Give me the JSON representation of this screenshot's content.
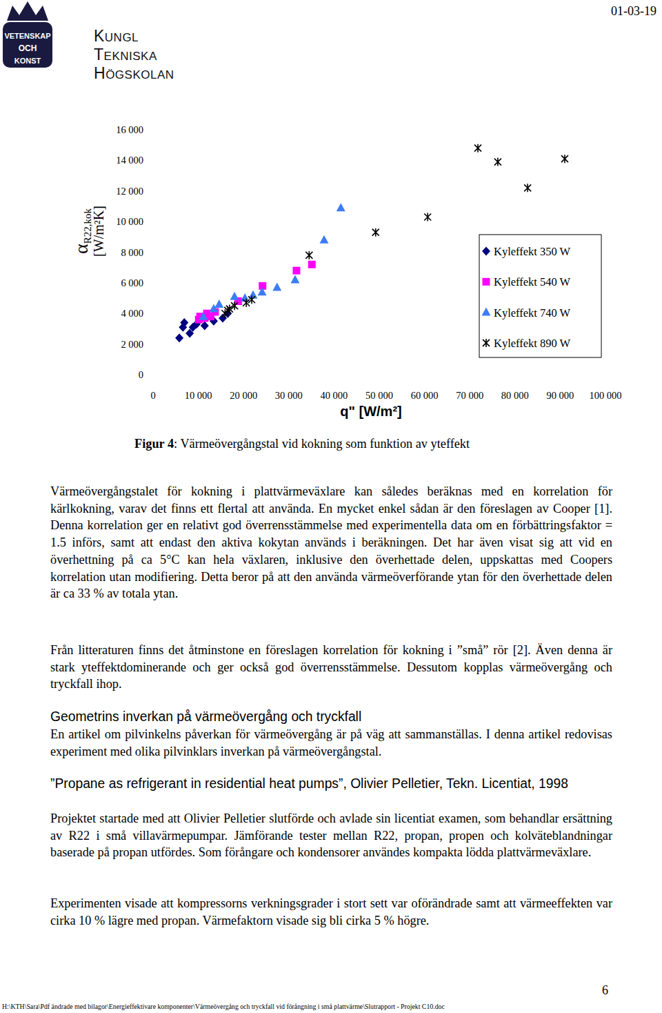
{
  "header": {
    "seal": [
      "VETENSKAP",
      "OCH",
      "KONST"
    ],
    "name": [
      "KUNGL",
      "TEKNISKA",
      "HÖGSKOLAN"
    ],
    "date": "01-03-19"
  },
  "chart_data": {
    "type": "scatter",
    "xlabel": "q\" [W/m²]",
    "ylabel": [
      "α",
      "R22,kok",
      "[W/m²K]"
    ],
    "xlim": [
      0,
      100000
    ],
    "ylim": [
      0,
      16000
    ],
    "xticks": [
      0,
      {
        "value": 10000,
        "label": "10 000"
      },
      {
        "value": 20000,
        "label": "20 000"
      },
      {
        "value": 30000,
        "label": "30 000"
      },
      {
        "value": 40000,
        "label": "40 000"
      },
      {
        "value": 50000,
        "label": "50 000"
      },
      {
        "value": 60000,
        "label": "60 000"
      },
      {
        "value": 70000,
        "label": "70 000"
      },
      {
        "value": 80000,
        "label": "80 000"
      },
      {
        "value": 90000,
        "label": "90 000"
      },
      {
        "value": 100000,
        "label": "100 000"
      }
    ],
    "yticks": [
      0,
      {
        "value": 2000,
        "label": "2 000"
      },
      {
        "value": 4000,
        "label": "4 000"
      },
      {
        "value": 6000,
        "label": "6 000"
      },
      {
        "value": 8000,
        "label": "8 000"
      },
      {
        "value": 10000,
        "label": "10 000"
      },
      {
        "value": 12000,
        "label": "12 000"
      },
      {
        "value": 14000,
        "label": "14 000"
      },
      {
        "value": 16000,
        "label": "16 000"
      }
    ],
    "legend": "right",
    "grid": false,
    "series": [
      {
        "name": "Kyleffekt 350 W",
        "color": "#000080",
        "marker": "diamond",
        "x": [
          5800,
          6600,
          6900,
          8100,
          8800,
          9600,
          11400,
          13400,
          15400,
          16500
        ],
        "values": [
          2400,
          3100,
          3400,
          2700,
          3100,
          3300,
          3200,
          3500,
          3700,
          4000
        ]
      },
      {
        "name": "Kyleffekt 540 W",
        "color": "#ff00ff",
        "marker": "square",
        "x": [
          10100,
          10400,
          11400,
          11900,
          12700,
          13700,
          18800,
          24200,
          31700,
          35100
        ],
        "values": [
          3600,
          3800,
          3700,
          4000,
          3800,
          4100,
          4800,
          5800,
          6800,
          7200
        ]
      },
      {
        "name": "Kyleffekt 740 W",
        "color": "#3d7cf5",
        "marker": "triangle",
        "x": [
          11100,
          13400,
          14600,
          18000,
          20300,
          22100,
          24100,
          27400,
          31400,
          37800,
          41500
        ],
        "values": [
          3800,
          4300,
          4600,
          5100,
          5000,
          5200,
          5400,
          5700,
          6200,
          8800,
          10900
        ]
      },
      {
        "name": "Kyleffekt 890 W",
        "color": "#000000",
        "marker": "asterisk",
        "x": [
          15900,
          16500,
          16900,
          18000,
          20600,
          21800,
          34500,
          49200,
          60700,
          71800,
          76200,
          82800,
          91000
        ],
        "values": [
          4000,
          4200,
          4300,
          4500,
          4700,
          4900,
          7800,
          9300,
          10300,
          14800,
          13900,
          12200,
          14100
        ]
      }
    ]
  },
  "caption": {
    "label": "Figur 4",
    "text": ": Värmeövergångstal vid kokning som funktion av yteffekt"
  },
  "body": [
    {
      "type": "paragraph",
      "text": "Värmeövergångstalet för kokning i plattvärmeväxlare kan således beräknas med en korrelation för kärlkokning, varav det finns ett flertal att använda. En mycket enkel sådan är den föreslagen av Cooper [1]. Denna korrelation ger en relativt god överrensstämmelse med experimentella data om en förbättringsfaktor = 1.5 införs, samt att endast den aktiva kokytan används i beräkningen. Det har även visat sig att vid en överhettning på ca 5°C kan hela växlaren, inklusive den överhettade delen, uppskattas med Coopers korrelation utan modifiering. Detta beror på att den använda värmeöverförande ytan för den överhettade delen är ca 33 % av totala ytan."
    },
    {
      "type": "paragraph",
      "text": "Från litteraturen finns det åtminstone en föreslagen korrelation för kokning i ”små” rör [2]. Även denna är stark yteffektdominerande och ger också god överrensstämmelse. Dessutom kopplas värmeövergång och tryckfall ihop."
    },
    {
      "type": "heading",
      "text": "Geometrins inverkan på värmeövergång och tryckfall"
    },
    {
      "type": "paragraph",
      "text": "En artikel om pilvinkelns påverkan för värmeövergång är på väg att sammanställas. I denna artikel redovisas experiment med olika pilvinklars inverkan på värmeövergångstal."
    },
    {
      "type": "heading",
      "text": "”Propane as refrigerant in residential heat pumps”, Olivier Pelletier, Tekn. Licentiat, 1998"
    },
    {
      "type": "paragraph",
      "text": "Projektet startade med att Olivier Pelletier slutförde och avlade sin licentiat examen, som behandlar ersättning av R22 i små villavärmepumpar. Jämförande tester mellan R22, propan, propen och kolväteblandningar baserade på propan utfördes. Som förångare och kondensorer användes kompakta lödda plattvärmeväxlare."
    },
    {
      "type": "paragraph",
      "text": "Experimenten visade att kompressorns verkningsgrader i stort sett var oförändrade samt att värmeeffekten var cirka 10 % lägre med propan. Värmefaktorn visade sig bli cirka 5 % högre."
    }
  ],
  "footer": {
    "page": "6",
    "path": "H:\\KTH\\Sara\\Pdf ändrade med bilagor\\Energieffektivare komponenter\\Värmeövergång och tryckfall vid förångning i små plattvärme\\Slutrapport - Projekt C10.doc"
  }
}
